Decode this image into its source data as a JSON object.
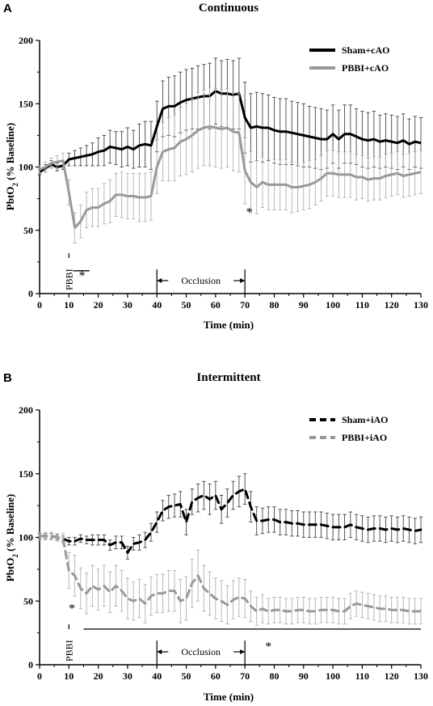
{
  "chart_data": [
    {
      "panel": "A",
      "type": "line",
      "title": "Continuous",
      "xlabel": "Time (min)",
      "ylabel": "PbtO2 (% Baseline)",
      "ylabel_main": "PbtO",
      "ylabel_sub": "2",
      "ylabel_rest": " (% Baseline)",
      "xlim": [
        0,
        130
      ],
      "ylim": [
        0,
        200
      ],
      "xticks": [
        "0",
        "10",
        "20",
        "30",
        "40",
        "50",
        "60",
        "70",
        "80",
        "90",
        "100",
        "110",
        "120",
        "130"
      ],
      "yticks": [
        "0",
        "50",
        "100",
        "150",
        "200"
      ],
      "legend_position": "top-right",
      "annotations": {
        "injury": "PBBI",
        "occlusion": "Occlusion",
        "occlusion_range": [
          40,
          70
        ],
        "star1": "*",
        "star2": "*"
      },
      "series": [
        {
          "name": "Sham+cAO",
          "color": "#000000",
          "dash": "solid",
          "x": [
            0,
            2,
            4,
            6,
            8,
            10,
            12,
            14,
            16,
            18,
            20,
            22,
            24,
            26,
            28,
            30,
            32,
            34,
            36,
            38,
            40,
            42,
            44,
            46,
            48,
            50,
            52,
            54,
            56,
            58,
            60,
            62,
            64,
            66,
            68,
            70,
            72,
            74,
            76,
            78,
            80,
            82,
            84,
            86,
            88,
            90,
            92,
            94,
            96,
            98,
            100,
            102,
            104,
            106,
            108,
            110,
            112,
            114,
            116,
            118,
            120,
            122,
            124,
            126,
            128,
            130
          ],
          "values": [
            96,
            99,
            102,
            100,
            101,
            106,
            107,
            108,
            109,
            110,
            112,
            113,
            116,
            115,
            114,
            116,
            114,
            117,
            118,
            117,
            132,
            146,
            148,
            148,
            151,
            153,
            154,
            155,
            156,
            156,
            160,
            158,
            158,
            157,
            158,
            139,
            131,
            132,
            131,
            131,
            129,
            128,
            128,
            127,
            126,
            125,
            124,
            123,
            122,
            122,
            126,
            122,
            126,
            126,
            124,
            122,
            121,
            122,
            120,
            121,
            120,
            119,
            121,
            118,
            120,
            119
          ],
          "errors": [
            2,
            3,
            3,
            3,
            3,
            5,
            6,
            7,
            8,
            9,
            11,
            12,
            13,
            13,
            14,
            15,
            15,
            17,
            18,
            19,
            20,
            22,
            23,
            24,
            24,
            24,
            24,
            25,
            25,
            26,
            26,
            26,
            27,
            27,
            28,
            28,
            27,
            27,
            27,
            26,
            26,
            26,
            26,
            25,
            25,
            25,
            24,
            24,
            24,
            23,
            23,
            23,
            23,
            23,
            22,
            22,
            22,
            22,
            21,
            21,
            21,
            21,
            21,
            20,
            20,
            20
          ]
        },
        {
          "name": "PBBI+cAO",
          "color": "#999999",
          "dash": "solid",
          "x": [
            0,
            2,
            4,
            6,
            8,
            10,
            12,
            14,
            16,
            18,
            20,
            22,
            24,
            26,
            28,
            30,
            32,
            34,
            36,
            38,
            40,
            42,
            44,
            46,
            48,
            50,
            52,
            54,
            56,
            58,
            60,
            62,
            64,
            66,
            68,
            70,
            72,
            74,
            76,
            78,
            80,
            82,
            84,
            86,
            88,
            90,
            92,
            94,
            96,
            98,
            100,
            102,
            104,
            106,
            108,
            110,
            112,
            114,
            116,
            118,
            120,
            122,
            124,
            126,
            128,
            130
          ],
          "values": [
            98,
            100,
            103,
            104,
            105,
            80,
            52,
            57,
            66,
            68,
            68,
            71,
            73,
            78,
            78,
            77,
            77,
            76,
            76,
            77,
            100,
            112,
            114,
            115,
            120,
            122,
            125,
            129,
            131,
            132,
            131,
            130,
            131,
            128,
            127,
            97,
            88,
            84,
            88,
            86,
            86,
            86,
            86,
            84,
            84,
            85,
            86,
            88,
            91,
            95,
            95,
            94,
            94,
            94,
            92,
            92,
            90,
            91,
            91,
            93,
            94,
            95,
            93,
            94,
            95,
            96
          ],
          "errors": [
            3,
            4,
            4,
            5,
            6,
            10,
            12,
            13,
            14,
            15,
            15,
            16,
            17,
            17,
            18,
            18,
            18,
            19,
            19,
            19,
            21,
            23,
            25,
            26,
            27,
            28,
            29,
            30,
            30,
            31,
            31,
            31,
            31,
            31,
            31,
            26,
            24,
            21,
            20,
            20,
            20,
            20,
            20,
            20,
            19,
            19,
            19,
            18,
            18,
            18,
            18,
            18,
            18,
            18,
            18,
            17,
            17,
            17,
            17,
            17,
            17,
            17,
            17,
            17,
            17,
            17
          ]
        }
      ]
    },
    {
      "panel": "B",
      "type": "line",
      "title": "Intermittent",
      "xlabel": "Time (min)",
      "ylabel": "PbtO2 (% Baseline)",
      "ylabel_main": "PbtO",
      "ylabel_sub": "2",
      "ylabel_rest": " (% Baseline)",
      "xlim": [
        0,
        130
      ],
      "ylim": [
        0,
        200
      ],
      "xticks": [
        "0",
        "10",
        "20",
        "30",
        "40",
        "50",
        "60",
        "70",
        "80",
        "90",
        "100",
        "110",
        "120",
        "130"
      ],
      "yticks": [
        "0",
        "50",
        "100",
        "150",
        "200"
      ],
      "legend_position": "top-right",
      "annotations": {
        "injury": "PBBI",
        "occlusion": "Occlusion",
        "occlusion_range": [
          40,
          70
        ],
        "star1": "*",
        "star2": "*",
        "sig_bar_range": [
          15,
          130
        ]
      },
      "series": [
        {
          "name": "Sham+iAO",
          "color": "#000000",
          "dash": "dashed",
          "x": [
            0,
            2,
            4,
            6,
            8,
            10,
            12,
            14,
            16,
            18,
            20,
            22,
            24,
            26,
            28,
            30,
            32,
            34,
            36,
            38,
            40,
            42,
            44,
            46,
            48,
            50,
            52,
            54,
            56,
            58,
            60,
            62,
            64,
            66,
            68,
            70,
            72,
            74,
            76,
            78,
            80,
            82,
            84,
            86,
            88,
            90,
            92,
            94,
            96,
            98,
            100,
            102,
            104,
            106,
            108,
            110,
            112,
            114,
            116,
            118,
            120,
            122,
            124,
            126,
            128,
            130
          ],
          "values": [
            101,
            101,
            101,
            100,
            99,
            97,
            97,
            99,
            98,
            98,
            98,
            98,
            94,
            96,
            96,
            88,
            95,
            96,
            98,
            104,
            112,
            121,
            124,
            125,
            126,
            112,
            128,
            131,
            133,
            130,
            133,
            122,
            127,
            133,
            136,
            138,
            124,
            113,
            113,
            114,
            114,
            112,
            112,
            111,
            111,
            110,
            110,
            110,
            110,
            109,
            108,
            108,
            108,
            110,
            108,
            107,
            106,
            107,
            107,
            106,
            107,
            106,
            107,
            106,
            105,
            106
          ],
          "errors": [
            2,
            2,
            2,
            2,
            2,
            3,
            3,
            3,
            3,
            4,
            4,
            4,
            4,
            5,
            5,
            5,
            5,
            6,
            6,
            7,
            8,
            8,
            9,
            9,
            10,
            10,
            10,
            11,
            11,
            12,
            11,
            11,
            11,
            11,
            12,
            12,
            12,
            11,
            10,
            10,
            10,
            10,
            10,
            10,
            10,
            10,
            10,
            10,
            10,
            10,
            10,
            10,
            10,
            10,
            10,
            10,
            10,
            10,
            10,
            10,
            10,
            10,
            10,
            10,
            10,
            10
          ]
        },
        {
          "name": "PBBI+iAO",
          "color": "#999999",
          "dash": "dashed",
          "x": [
            0,
            2,
            4,
            6,
            8,
            10,
            12,
            14,
            16,
            18,
            20,
            22,
            24,
            26,
            28,
            30,
            32,
            34,
            36,
            38,
            40,
            42,
            44,
            46,
            48,
            50,
            52,
            54,
            56,
            58,
            60,
            62,
            64,
            66,
            68,
            70,
            72,
            74,
            76,
            78,
            80,
            82,
            84,
            86,
            88,
            90,
            92,
            94,
            96,
            98,
            100,
            102,
            104,
            106,
            108,
            110,
            112,
            114,
            116,
            118,
            120,
            122,
            124,
            126,
            128,
            130
          ],
          "values": [
            101,
            101,
            101,
            100,
            99,
            74,
            70,
            60,
            56,
            62,
            59,
            62,
            57,
            62,
            58,
            52,
            50,
            52,
            48,
            54,
            56,
            56,
            58,
            58,
            50,
            52,
            64,
            70,
            60,
            56,
            52,
            50,
            47,
            51,
            53,
            52,
            46,
            42,
            44,
            42,
            43,
            43,
            42,
            42,
            43,
            43,
            42,
            42,
            43,
            43,
            43,
            42,
            42,
            46,
            48,
            47,
            46,
            45,
            44,
            44,
            43,
            43,
            43,
            42,
            42,
            42
          ],
          "errors": [
            3,
            3,
            3,
            3,
            4,
            14,
            16,
            16,
            16,
            16,
            16,
            16,
            16,
            16,
            16,
            16,
            15,
            15,
            15,
            15,
            15,
            15,
            16,
            16,
            17,
            17,
            19,
            20,
            18,
            17,
            16,
            16,
            15,
            15,
            15,
            15,
            12,
            11,
            11,
            10,
            10,
            10,
            10,
            10,
            10,
            10,
            10,
            10,
            10,
            10,
            10,
            10,
            10,
            10,
            10,
            10,
            10,
            10,
            10,
            10,
            10,
            10,
            10,
            10,
            10,
            10
          ]
        }
      ]
    }
  ]
}
